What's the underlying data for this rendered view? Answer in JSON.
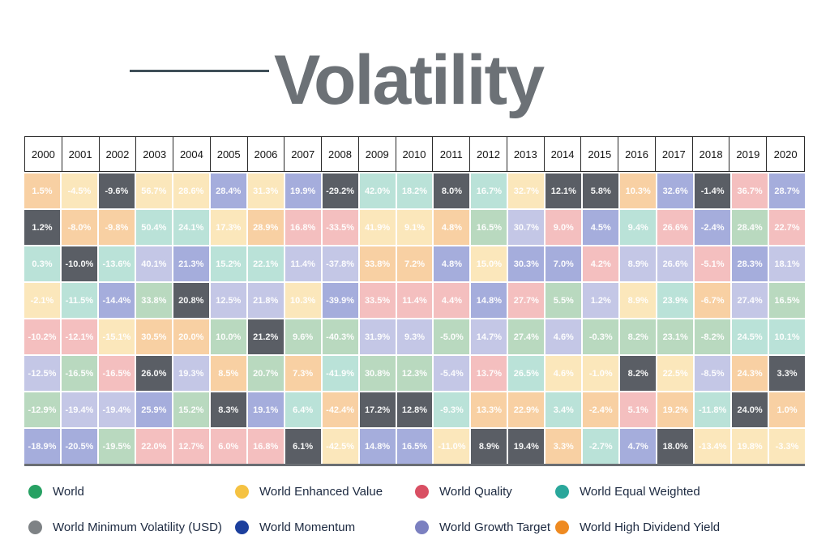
{
  "title": {
    "text": "Volatility",
    "color": "#6c7176",
    "underline_color": "#3f4f58"
  },
  "legend": [
    {
      "id": "world",
      "label": "World",
      "dot_color": "#27a163",
      "cell_color": "#b9d9bf"
    },
    {
      "id": "enhanced_value",
      "label": "World Enhanced Value",
      "dot_color": "#f5c242",
      "cell_color": "#fbe7bb"
    },
    {
      "id": "quality",
      "label": "World Quality",
      "dot_color": "#d94f63",
      "cell_color": "#f4bfbf"
    },
    {
      "id": "equal_weighted",
      "label": "World Equal Weighted",
      "dot_color": "#2aa79b",
      "cell_color": "#bae2d8"
    },
    {
      "id": "min_vol",
      "label": "World Minimum Volatility (USD)",
      "dot_color": "#7e8285",
      "cell_color": "#5a5e65"
    },
    {
      "id": "momentum",
      "label": "World Momentum",
      "dot_color": "#1c3f9d",
      "cell_color": "#a5addc"
    },
    {
      "id": "growth_target",
      "label": "World Growth Target",
      "dot_color": "#7b80c0",
      "cell_color": "#c4c7e6"
    },
    {
      "id": "high_dividend",
      "label": "World High Dividend Yield",
      "dot_color": "#ee8a21",
      "cell_color": "#f8d0a3"
    }
  ],
  "chart_data": {
    "type": "heatmap",
    "title": "Volatility",
    "x": [
      "2000",
      "2001",
      "2002",
      "2003",
      "2004",
      "2005",
      "2006",
      "2007",
      "2008",
      "2009",
      "2010",
      "2011",
      "2012",
      "2013",
      "2014",
      "2015",
      "2016",
      "2017",
      "2018",
      "2019",
      "2020"
    ],
    "legend_position": "bottom",
    "columns": [
      {
        "year": "2000",
        "cells": [
          {
            "v": "1.5%",
            "s": "high_dividend"
          },
          {
            "v": "1.2%",
            "s": "min_vol"
          },
          {
            "v": "0.3%",
            "s": "equal_weighted"
          },
          {
            "v": "-2.1%",
            "s": "enhanced_value"
          },
          {
            "v": "-10.2%",
            "s": "quality"
          },
          {
            "v": "-12.5%",
            "s": "growth_target"
          },
          {
            "v": "-12.9%",
            "s": "world"
          },
          {
            "v": "-18.9%",
            "s": "momentum"
          }
        ]
      },
      {
        "year": "2001",
        "cells": [
          {
            "v": "-4.5%",
            "s": "enhanced_value"
          },
          {
            "v": "-8.0%",
            "s": "high_dividend"
          },
          {
            "v": "-10.0%",
            "s": "min_vol"
          },
          {
            "v": "-11.5%",
            "s": "equal_weighted"
          },
          {
            "v": "-12.1%",
            "s": "quality"
          },
          {
            "v": "-16.5%",
            "s": "world"
          },
          {
            "v": "-19.4%",
            "s": "growth_target"
          },
          {
            "v": "-20.5%",
            "s": "momentum"
          }
        ]
      },
      {
        "year": "2002",
        "cells": [
          {
            "v": "-9.6%",
            "s": "min_vol"
          },
          {
            "v": "-9.8%",
            "s": "high_dividend"
          },
          {
            "v": "-13.6%",
            "s": "equal_weighted"
          },
          {
            "v": "-14.4%",
            "s": "momentum"
          },
          {
            "v": "-15.1%",
            "s": "enhanced_value"
          },
          {
            "v": "-16.5%",
            "s": "quality"
          },
          {
            "v": "-19.4%",
            "s": "growth_target"
          },
          {
            "v": "-19.5%",
            "s": "world"
          }
        ]
      },
      {
        "year": "2003",
        "cells": [
          {
            "v": "56.7%",
            "s": "enhanced_value"
          },
          {
            "v": "50.4%",
            "s": "equal_weighted"
          },
          {
            "v": "40.1%",
            "s": "growth_target"
          },
          {
            "v": "33.8%",
            "s": "world"
          },
          {
            "v": "30.5%",
            "s": "high_dividend"
          },
          {
            "v": "26.0%",
            "s": "min_vol"
          },
          {
            "v": "25.9%",
            "s": "momentum"
          },
          {
            "v": "22.0%",
            "s": "quality"
          }
        ]
      },
      {
        "year": "2004",
        "cells": [
          {
            "v": "28.6%",
            "s": "enhanced_value"
          },
          {
            "v": "24.1%",
            "s": "equal_weighted"
          },
          {
            "v": "21.3%",
            "s": "momentum"
          },
          {
            "v": "20.8%",
            "s": "min_vol"
          },
          {
            "v": "20.0%",
            "s": "high_dividend"
          },
          {
            "v": "19.3%",
            "s": "growth_target"
          },
          {
            "v": "15.2%",
            "s": "world"
          },
          {
            "v": "12.7%",
            "s": "quality"
          }
        ]
      },
      {
        "year": "2005",
        "cells": [
          {
            "v": "28.4%",
            "s": "momentum"
          },
          {
            "v": "17.3%",
            "s": "enhanced_value"
          },
          {
            "v": "15.2%",
            "s": "equal_weighted"
          },
          {
            "v": "12.5%",
            "s": "growth_target"
          },
          {
            "v": "10.0%",
            "s": "world"
          },
          {
            "v": "8.5%",
            "s": "high_dividend"
          },
          {
            "v": "8.3%",
            "s": "min_vol"
          },
          {
            "v": "6.0%",
            "s": "quality"
          }
        ]
      },
      {
        "year": "2006",
        "cells": [
          {
            "v": "31.3%",
            "s": "enhanced_value"
          },
          {
            "v": "28.9%",
            "s": "high_dividend"
          },
          {
            "v": "22.1%",
            "s": "equal_weighted"
          },
          {
            "v": "21.8%",
            "s": "growth_target"
          },
          {
            "v": "21.2%",
            "s": "min_vol"
          },
          {
            "v": "20.7%",
            "s": "world"
          },
          {
            "v": "19.1%",
            "s": "momentum"
          },
          {
            "v": "16.8%",
            "s": "quality"
          }
        ]
      },
      {
        "year": "2007",
        "cells": [
          {
            "v": "19.9%",
            "s": "momentum"
          },
          {
            "v": "16.8%",
            "s": "quality"
          },
          {
            "v": "11.4%",
            "s": "growth_target"
          },
          {
            "v": "10.3%",
            "s": "enhanced_value"
          },
          {
            "v": "9.6%",
            "s": "world"
          },
          {
            "v": "7.3%",
            "s": "high_dividend"
          },
          {
            "v": "6.4%",
            "s": "equal_weighted"
          },
          {
            "v": "6.1%",
            "s": "min_vol"
          }
        ]
      },
      {
        "year": "2008",
        "cells": [
          {
            "v": "-29.2%",
            "s": "min_vol"
          },
          {
            "v": "-33.5%",
            "s": "quality"
          },
          {
            "v": "-37.8%",
            "s": "growth_target"
          },
          {
            "v": "-39.9%",
            "s": "momentum"
          },
          {
            "v": "-40.3%",
            "s": "world"
          },
          {
            "v": "-41.9%",
            "s": "equal_weighted"
          },
          {
            "v": "-42.4%",
            "s": "high_dividend"
          },
          {
            "v": "-42.5%",
            "s": "enhanced_value"
          }
        ]
      },
      {
        "year": "2009",
        "cells": [
          {
            "v": "42.0%",
            "s": "equal_weighted"
          },
          {
            "v": "41.9%",
            "s": "enhanced_value"
          },
          {
            "v": "33.8%",
            "s": "high_dividend"
          },
          {
            "v": "33.5%",
            "s": "quality"
          },
          {
            "v": "31.9%",
            "s": "growth_target"
          },
          {
            "v": "30.8%",
            "s": "world"
          },
          {
            "v": "17.2%",
            "s": "min_vol"
          },
          {
            "v": "14.8%",
            "s": "momentum"
          }
        ]
      },
      {
        "year": "2010",
        "cells": [
          {
            "v": "18.2%",
            "s": "equal_weighted"
          },
          {
            "v": "9.1%",
            "s": "enhanced_value"
          },
          {
            "v": "7.2%",
            "s": "high_dividend"
          },
          {
            "v": "11.4%",
            "s": "quality"
          },
          {
            "v": "9.3%",
            "s": "growth_target"
          },
          {
            "v": "12.3%",
            "s": "world"
          },
          {
            "v": "12.8%",
            "s": "min_vol"
          },
          {
            "v": "16.5%",
            "s": "momentum"
          }
        ]
      },
      {
        "year": "2011",
        "cells": [
          {
            "v": "8.0%",
            "s": "min_vol"
          },
          {
            "v": "4.8%",
            "s": "high_dividend"
          },
          {
            "v": "4.8%",
            "s": "momentum"
          },
          {
            "v": "4.4%",
            "s": "quality"
          },
          {
            "v": "-5.0%",
            "s": "world"
          },
          {
            "v": "-5.4%",
            "s": "growth_target"
          },
          {
            "v": "-9.3%",
            "s": "equal_weighted"
          },
          {
            "v": "-11.0%",
            "s": "enhanced_value"
          }
        ]
      },
      {
        "year": "2012",
        "cells": [
          {
            "v": "16.7%",
            "s": "equal_weighted"
          },
          {
            "v": "16.5%",
            "s": "world"
          },
          {
            "v": "15.0%",
            "s": "enhanced_value"
          },
          {
            "v": "14.8%",
            "s": "momentum"
          },
          {
            "v": "14.7%",
            "s": "growth_target"
          },
          {
            "v": "13.7%",
            "s": "quality"
          },
          {
            "v": "13.3%",
            "s": "high_dividend"
          },
          {
            "v": "8.9%",
            "s": "min_vol"
          }
        ]
      },
      {
        "year": "2013",
        "cells": [
          {
            "v": "32.7%",
            "s": "enhanced_value"
          },
          {
            "v": "30.7%",
            "s": "growth_target"
          },
          {
            "v": "30.3%",
            "s": "momentum"
          },
          {
            "v": "27.7%",
            "s": "quality"
          },
          {
            "v": "27.4%",
            "s": "world"
          },
          {
            "v": "26.5%",
            "s": "equal_weighted"
          },
          {
            "v": "22.9%",
            "s": "high_dividend"
          },
          {
            "v": "19.4%",
            "s": "min_vol"
          }
        ]
      },
      {
        "year": "2014",
        "cells": [
          {
            "v": "12.1%",
            "s": "min_vol"
          },
          {
            "v": "9.0%",
            "s": "quality"
          },
          {
            "v": "7.0%",
            "s": "momentum"
          },
          {
            "v": "5.5%",
            "s": "world"
          },
          {
            "v": "4.6%",
            "s": "growth_target"
          },
          {
            "v": "4.6%",
            "s": "enhanced_value"
          },
          {
            "v": "3.4%",
            "s": "equal_weighted"
          },
          {
            "v": "3.3%",
            "s": "high_dividend"
          }
        ]
      },
      {
        "year": "2015",
        "cells": [
          {
            "v": "5.8%",
            "s": "min_vol"
          },
          {
            "v": "4.5%",
            "s": "momentum"
          },
          {
            "v": "4.2%",
            "s": "quality"
          },
          {
            "v": "1.2%",
            "s": "growth_target"
          },
          {
            "v": "-0.3%",
            "s": "world"
          },
          {
            "v": "-1.0%",
            "s": "enhanced_value"
          },
          {
            "v": "-2.4%",
            "s": "high_dividend"
          },
          {
            "v": "-2.7%",
            "s": "equal_weighted"
          }
        ]
      },
      {
        "year": "2016",
        "cells": [
          {
            "v": "10.3%",
            "s": "high_dividend"
          },
          {
            "v": "9.4%",
            "s": "equal_weighted"
          },
          {
            "v": "8.9%",
            "s": "growth_target"
          },
          {
            "v": "8.9%",
            "s": "enhanced_value"
          },
          {
            "v": "8.2%",
            "s": "world"
          },
          {
            "v": "8.2%",
            "s": "min_vol"
          },
          {
            "v": "5.1%",
            "s": "quality"
          },
          {
            "v": "4.7%",
            "s": "momentum"
          }
        ]
      },
      {
        "year": "2017",
        "cells": [
          {
            "v": "32.6%",
            "s": "momentum"
          },
          {
            "v": "26.6%",
            "s": "quality"
          },
          {
            "v": "26.6%",
            "s": "growth_target"
          },
          {
            "v": "23.9%",
            "s": "equal_weighted"
          },
          {
            "v": "23.1%",
            "s": "world"
          },
          {
            "v": "22.5%",
            "s": "enhanced_value"
          },
          {
            "v": "19.2%",
            "s": "high_dividend"
          },
          {
            "v": "18.0%",
            "s": "min_vol"
          }
        ]
      },
      {
        "year": "2018",
        "cells": [
          {
            "v": "-1.4%",
            "s": "min_vol"
          },
          {
            "v": "-2.4%",
            "s": "momentum"
          },
          {
            "v": "-5.1%",
            "s": "quality"
          },
          {
            "v": "-6.7%",
            "s": "high_dividend"
          },
          {
            "v": "-8.2%",
            "s": "world"
          },
          {
            "v": "-8.5%",
            "s": "growth_target"
          },
          {
            "v": "-11.8%",
            "s": "equal_weighted"
          },
          {
            "v": "-13.4%",
            "s": "enhanced_value"
          }
        ]
      },
      {
        "year": "2019",
        "cells": [
          {
            "v": "36.7%",
            "s": "quality"
          },
          {
            "v": "28.4%",
            "s": "world"
          },
          {
            "v": "28.3%",
            "s": "momentum"
          },
          {
            "v": "27.4%",
            "s": "growth_target"
          },
          {
            "v": "24.5%",
            "s": "equal_weighted"
          },
          {
            "v": "24.3%",
            "s": "high_dividend"
          },
          {
            "v": "24.0%",
            "s": "min_vol"
          },
          {
            "v": "19.8%",
            "s": "enhanced_value"
          }
        ]
      },
      {
        "year": "2020",
        "cells": [
          {
            "v": "28.7%",
            "s": "momentum"
          },
          {
            "v": "22.7%",
            "s": "quality"
          },
          {
            "v": "18.1%",
            "s": "growth_target"
          },
          {
            "v": "16.5%",
            "s": "world"
          },
          {
            "v": "10.1%",
            "s": "equal_weighted"
          },
          {
            "v": "3.3%",
            "s": "min_vol"
          },
          {
            "v": "1.0%",
            "s": "high_dividend"
          },
          {
            "v": "-3.3%",
            "s": "enhanced_value"
          }
        ]
      }
    ]
  }
}
